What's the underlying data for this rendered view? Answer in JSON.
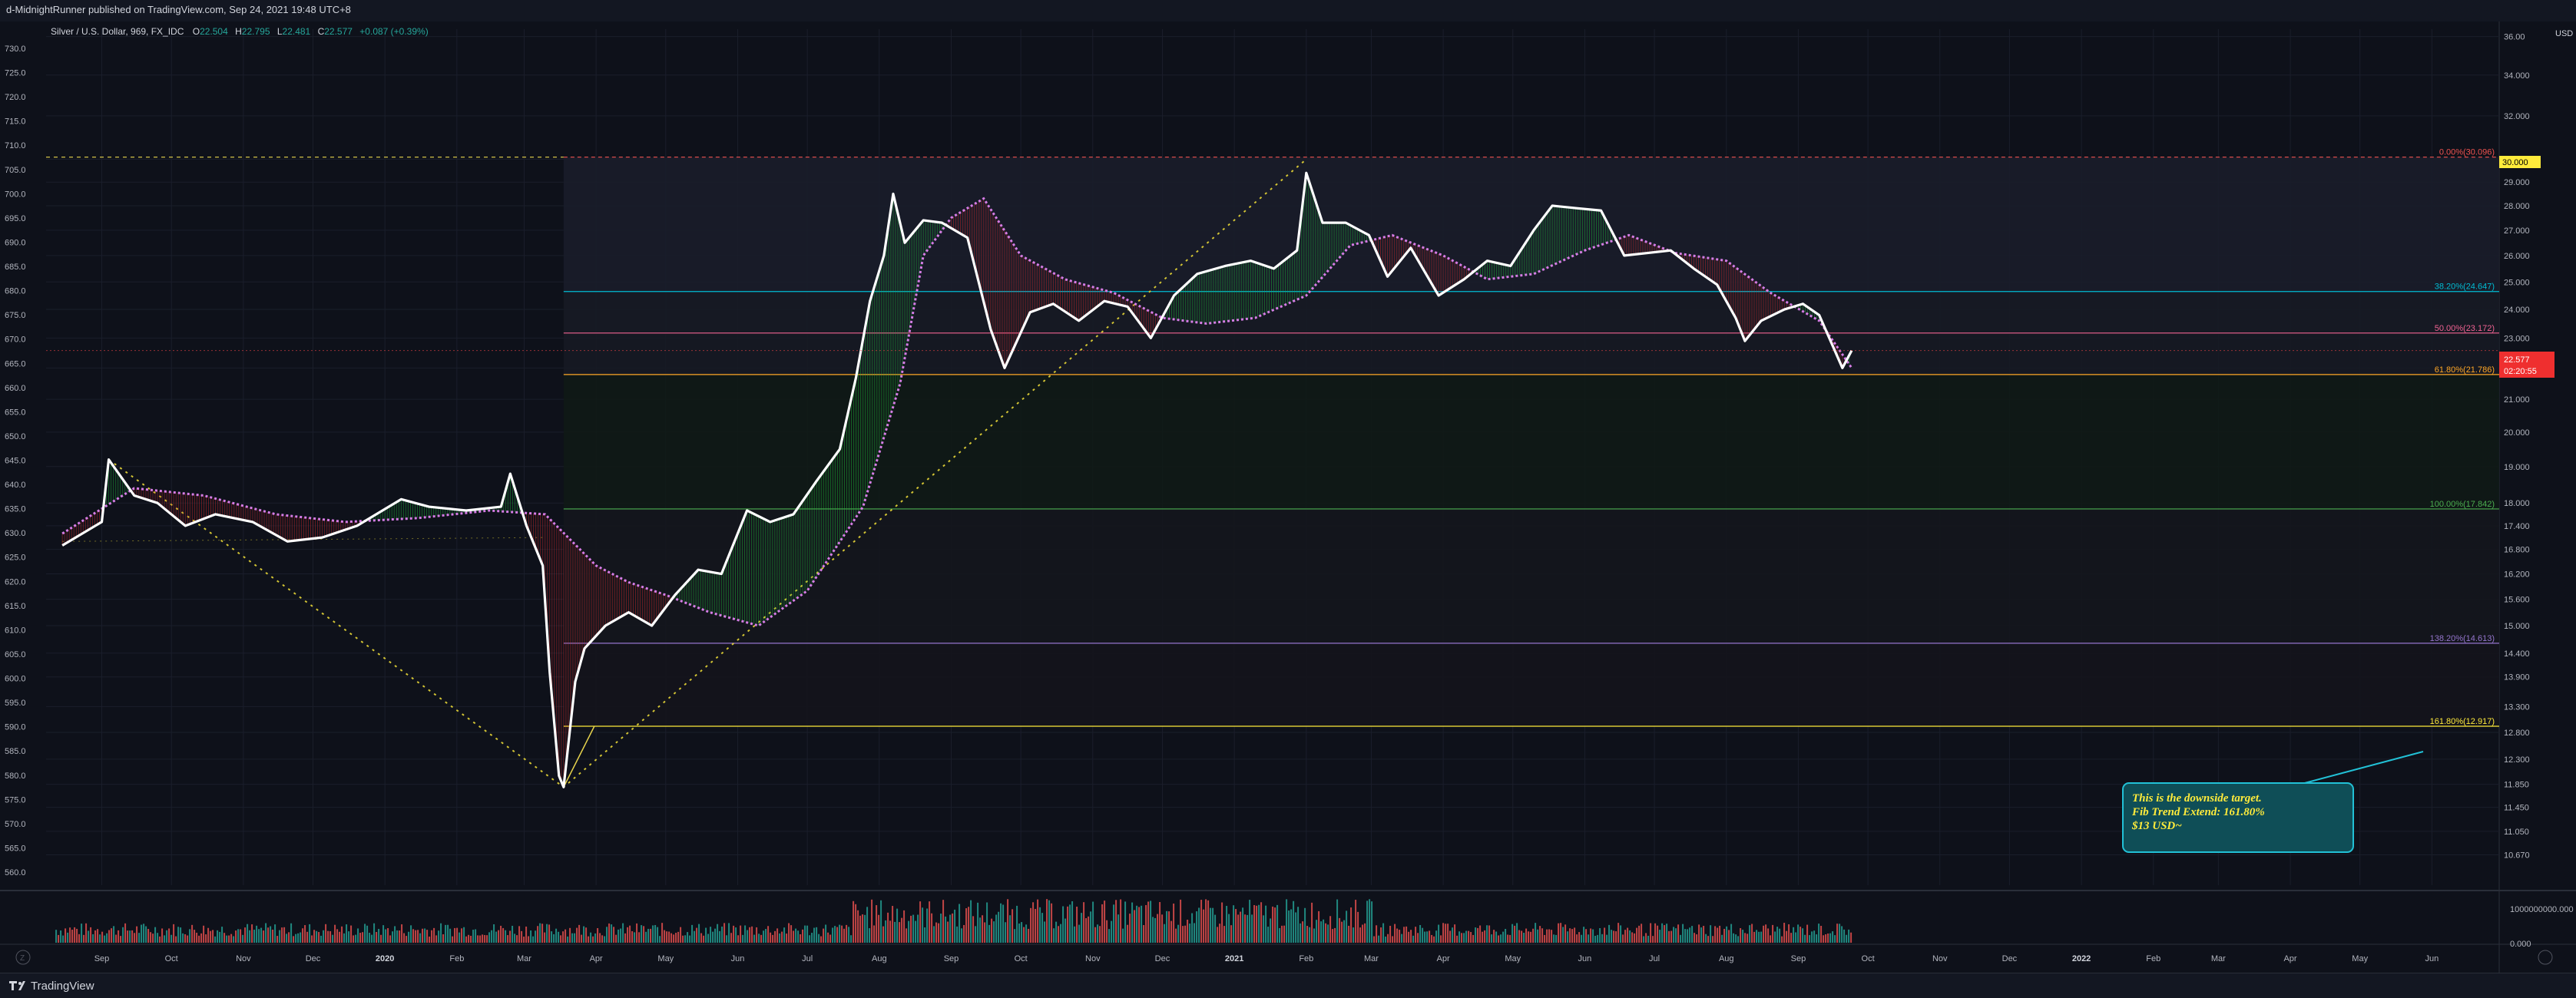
{
  "header": {
    "published": "d-MidnightRunner published on TradingView.com, Sep 24, 2021 19:48 UTC+8"
  },
  "chart": {
    "symbol_line": "Silver / U.S. Dollar, 969, FX_IDC",
    "ohlc": {
      "open_label": "O",
      "open": "22.504",
      "high_label": "H",
      "high": "22.795",
      "low_label": "L",
      "low": "22.481",
      "close_label": "C",
      "close": "22.577",
      "change": "+0.087 (+0.39%)"
    },
    "currency": "USD",
    "current_price": "22.577",
    "countdown": "02:20:55",
    "fib_top_tag": "30.000",
    "annotation": {
      "line1": "This is the downside target.",
      "line2": "Fib Trend Extend: 161.80%",
      "line3": "$13 USD~"
    },
    "volume_ticks": [
      "1000000000.000",
      "0.000"
    ]
  },
  "colors": {
    "background": "#0e111a",
    "grid": "#1a1e2b",
    "price_line": "#ffffff",
    "up": "#22c55e",
    "down": "#ef4444",
    "ma": "#d67de6",
    "fib_0": "#ef5350",
    "fib_382": "#00bcd4",
    "fib_50": "#f06292",
    "fib_618": "#ffa726",
    "fib_100": "#4caf50",
    "fib_1382": "#9575cd",
    "fib_1618": "#ffeb3b",
    "annotation_bg": "#0f4e57",
    "annotation_text": "#ffeb3b"
  },
  "footer": {
    "brand": "TradingView"
  },
  "chart_data": {
    "type": "line",
    "title": "Silver / U.S. Dollar, 969, FX_IDC",
    "ylabel": "USD",
    "ylim": [
      10.2,
      36.4
    ],
    "left_axis_ticks": [
      "730.0",
      "725.0",
      "720.0",
      "715.0",
      "710.0",
      "705.0",
      "700.0",
      "695.0",
      "690.0",
      "685.0",
      "680.0",
      "675.0",
      "670.0",
      "665.0",
      "660.0",
      "655.0",
      "650.0",
      "645.0",
      "640.0",
      "635.0",
      "630.0",
      "625.0",
      "620.0",
      "615.0",
      "610.0",
      "605.0",
      "600.0",
      "595.0",
      "590.0",
      "585.0",
      "580.0",
      "575.0",
      "570.0",
      "565.0",
      "560.0"
    ],
    "right_axis_ticks": [
      "36.00",
      "34.000",
      "32.000",
      "30.000",
      "29.000",
      "28.000",
      "27.000",
      "26.000",
      "25.000",
      "24.000",
      "23.000",
      "22.000",
      "21.000",
      "20.000",
      "19.000",
      "18.000",
      "17.400",
      "16.800",
      "16.200",
      "15.600",
      "15.000",
      "14.400",
      "13.900",
      "13.300",
      "12.800",
      "12.300",
      "11.850",
      "11.450",
      "11.050",
      "10.670"
    ],
    "x_ticks": [
      "Sep",
      "Oct",
      "Nov",
      "Dec",
      "2020",
      "Feb",
      "Mar",
      "Apr",
      "May",
      "Jun",
      "Jul",
      "Aug",
      "Sep",
      "Oct",
      "Nov",
      "Dec",
      "2021",
      "Feb",
      "Mar",
      "Apr",
      "May",
      "Jun",
      "Jul",
      "Aug",
      "Sep",
      "Oct",
      "Nov",
      "Dec",
      "2022",
      "Feb",
      "Mar",
      "Apr",
      "May",
      "Jun"
    ],
    "fib_levels": [
      {
        "label": "0.00%(30.096)",
        "value": 30.096
      },
      {
        "label": "38.20%(24.647)",
        "value": 24.647
      },
      {
        "label": "50.00%(23.172)",
        "value": 23.172
      },
      {
        "label": "61.80%(21.786)",
        "value": 21.786
      },
      {
        "label": "100.00%(17.842)",
        "value": 17.842
      },
      {
        "label": "138.20%(14.613)",
        "value": 14.613
      },
      {
        "label": "161.80%(12.917)",
        "value": 12.917
      }
    ],
    "series": [
      {
        "name": "Silver",
        "x": [
          "2019-08-15",
          "2019-09-01",
          "2019-09-04",
          "2019-09-15",
          "2019-09-25",
          "2019-10-07",
          "2019-10-20",
          "2019-11-05",
          "2019-11-20",
          "2019-12-05",
          "2019-12-20",
          "2020-01-08",
          "2020-01-20",
          "2020-02-05",
          "2020-02-20",
          "2020-02-24",
          "2020-03-02",
          "2020-03-09",
          "2020-03-12",
          "2020-03-16",
          "2020-03-18",
          "2020-03-23",
          "2020-03-27",
          "2020-04-05",
          "2020-04-15",
          "2020-04-25",
          "2020-05-05",
          "2020-05-15",
          "2020-05-25",
          "2020-06-05",
          "2020-06-15",
          "2020-06-25",
          "2020-07-05",
          "2020-07-15",
          "2020-07-22",
          "2020-07-28",
          "2020-08-03",
          "2020-08-07",
          "2020-08-12",
          "2020-08-20",
          "2020-08-28",
          "2020-09-08",
          "2020-09-18",
          "2020-09-24",
          "2020-10-05",
          "2020-10-15",
          "2020-10-26",
          "2020-11-06",
          "2020-11-16",
          "2020-11-26",
          "2020-12-06",
          "2020-12-16",
          "2020-12-28",
          "2021-01-08",
          "2021-01-18",
          "2021-01-28",
          "2021-02-01",
          "2021-02-08",
          "2021-02-18",
          "2021-02-28",
          "2021-03-08",
          "2021-03-18",
          "2021-03-30",
          "2021-04-10",
          "2021-04-20",
          "2021-04-30",
          "2021-05-10",
          "2021-05-18",
          "2021-05-28",
          "2021-06-08",
          "2021-06-18",
          "2021-06-28",
          "2021-07-08",
          "2021-07-18",
          "2021-07-28",
          "2021-08-05",
          "2021-08-09",
          "2021-08-16",
          "2021-08-26",
          "2021-09-03",
          "2021-09-10",
          "2021-09-20",
          "2021-09-24"
        ],
        "values": [
          16.9,
          17.5,
          19.2,
          18.2,
          18.0,
          17.4,
          17.7,
          17.5,
          17.0,
          17.1,
          17.4,
          18.1,
          17.9,
          17.8,
          17.9,
          18.8,
          17.4,
          16.4,
          14.0,
          12.0,
          11.8,
          13.8,
          14.5,
          15.0,
          15.3,
          15.0,
          15.7,
          16.3,
          16.2,
          17.8,
          17.5,
          17.7,
          18.6,
          19.5,
          21.7,
          24.3,
          26.0,
          28.5,
          26.5,
          27.4,
          27.3,
          26.7,
          23.3,
          22.0,
          23.9,
          24.2,
          23.6,
          24.3,
          24.1,
          23.0,
          24.5,
          25.3,
          25.6,
          25.8,
          25.5,
          26.2,
          29.4,
          27.3,
          27.3,
          26.8,
          25.2,
          26.3,
          24.5,
          25.1,
          25.8,
          25.6,
          27.0,
          28.0,
          27.9,
          27.8,
          26.0,
          26.1,
          26.2,
          25.5,
          24.9,
          23.7,
          22.9,
          23.6,
          24.0,
          24.2,
          23.8,
          22.0,
          22.577
        ]
      },
      {
        "name": "MA",
        "x": [
          "2019-08-15",
          "2019-09-15",
          "2019-10-15",
          "2019-11-15",
          "2019-12-15",
          "2020-01-15",
          "2020-02-15",
          "2020-03-10",
          "2020-04-01",
          "2020-04-15",
          "2020-05-01",
          "2020-05-20",
          "2020-06-10",
          "2020-07-01",
          "2020-07-25",
          "2020-08-10",
          "2020-08-20",
          "2020-09-01",
          "2020-09-15",
          "2020-10-01",
          "2020-10-20",
          "2020-11-10",
          "2020-12-01",
          "2020-12-20",
          "2021-01-10",
          "2021-02-01",
          "2021-02-20",
          "2021-03-10",
          "2021-04-01",
          "2021-04-20",
          "2021-05-10",
          "2021-06-01",
          "2021-06-20",
          "2021-07-10",
          "2021-08-01",
          "2021-08-20",
          "2021-09-10",
          "2021-09-24"
        ],
        "values": [
          17.2,
          18.4,
          18.2,
          17.7,
          17.5,
          17.6,
          17.8,
          17.7,
          16.4,
          16.0,
          15.7,
          15.3,
          15.0,
          15.8,
          17.9,
          21.5,
          26.0,
          27.5,
          28.3,
          26.0,
          25.1,
          24.6,
          23.7,
          23.5,
          23.7,
          24.5,
          26.4,
          26.8,
          26.0,
          25.1,
          25.3,
          26.2,
          26.8,
          26.1,
          25.8,
          24.6,
          23.6,
          22.0
        ]
      }
    ],
    "volume_axis_max_label": "1000000000.000"
  }
}
